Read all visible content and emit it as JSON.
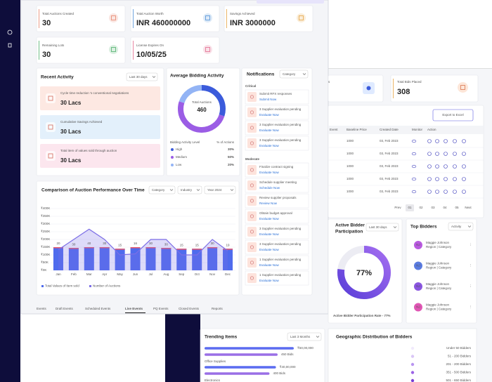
{
  "stat_cards": [
    {
      "label": "Total Auctions Created",
      "value": "30",
      "color": "#e8836b"
    },
    {
      "label": "Total Auction Worth",
      "value": "INR 460000000",
      "color": "#4e8fd6"
    },
    {
      "label": "Savings Achieved",
      "value": "INR 3000000",
      "color": "#e6a443"
    },
    {
      "label": "Remaining Lots",
      "value": "30",
      "color": "#4caf6a"
    },
    {
      "label": "License Expires On",
      "value": "10/05/25",
      "color": "#e36b8e"
    }
  ],
  "recent_activity": {
    "title": "Recent Activity",
    "filter": "Last 30 days",
    "items": [
      {
        "text": "Cycle time reduction ’s conventional negotiations",
        "value": "30 Lacs",
        "color": "#fde8e2"
      },
      {
        "text": "Cumulative Savings Achieved",
        "value": "30 Lacs",
        "color": "#e3f0fb"
      },
      {
        "text": "Total item of values sold through auction",
        "value": "30 Lacs",
        "color": "#fce6ee"
      }
    ]
  },
  "avg_bidding": {
    "title": "Average Bidding Activity",
    "center_label": "Total Auctions",
    "center_value": 460,
    "header": [
      "Bidding Activity Level",
      "% of Actions"
    ],
    "levels": [
      {
        "name": "High",
        "value": 30,
        "value_label": "30%",
        "color": "#3b5bdb"
      },
      {
        "name": "Medium",
        "value": 50,
        "value_label": "50%",
        "color": "#9b5de5"
      },
      {
        "name": "Low",
        "value": 20,
        "value_label": "20%",
        "color": "#93b4f5"
      }
    ]
  },
  "notifications": {
    "title": "Notifications",
    "filter": "Category",
    "groups": [
      {
        "name": "Critical",
        "items": [
          {
            "text": "Submit RFX responses",
            "action": "Submit Now"
          },
          {
            "text": "3 Supplier evaluation pending",
            "action": "Evaluate Now"
          },
          {
            "text": "3 Supplier evaluation pending",
            "action": "Evaluate Now"
          },
          {
            "text": "3 Supplier evaluation pending",
            "action": "Evaluate Now"
          }
        ]
      },
      {
        "name": "Moderate",
        "items": [
          {
            "text": "Finalize contract signing",
            "action": "Evaluate Now"
          },
          {
            "text": "Schedule supplier meeting",
            "action": "Schedule Now"
          },
          {
            "text": "Review supplier proposals",
            "action": "Review Now"
          },
          {
            "text": "Obtain budget approval",
            "action": "Evaluate Now"
          },
          {
            "text": "3 Supplier evaluation pending",
            "action": "Evaluate Now"
          },
          {
            "text": "3 Supplier evaluation pending",
            "action": "Evaluate Now"
          },
          {
            "text": "1 Supplier evaluation pending",
            "action": "Evaluate Now"
          },
          {
            "text": "1 Supplier evaluation pending",
            "action": "Evaluate Now"
          }
        ]
      }
    ]
  },
  "chart_data": {
    "type": "bar",
    "title": "Comparison of Auction Performance Over Time",
    "filters": [
      "Category",
      "Industry",
      "Year 2024"
    ],
    "categories": [
      "Jan",
      "Feb",
      "Mar",
      "Apr",
      "May",
      "Jun",
      "Jul",
      "Aug",
      "Sep",
      "Oct",
      "Nov",
      "Dec"
    ],
    "series": [
      {
        "name": "Total Values of Item sold",
        "color": "#4f6bed",
        "values": [
          150,
          145,
          150,
          150,
          140,
          150,
          150,
          145,
          140,
          140,
          150,
          140
        ]
      },
      {
        "name": "Number of Auctions",
        "type": "line",
        "axis": "y2",
        "color": "#7c6ee6",
        "values": [
          20,
          30,
          40,
          30,
          15,
          16,
          30,
          30,
          15,
          15,
          30,
          19
        ]
      }
    ],
    "ylim": [
      0,
      400
    ],
    "yticks": [
      {
        "value": 0,
        "label": "₹0K"
      },
      {
        "value": 50,
        "label": "₹50K"
      },
      {
        "value": 100,
        "label": "₹100K"
      },
      {
        "value": 150,
        "label": "₹150K"
      },
      {
        "value": 200,
        "label": "₹200K"
      },
      {
        "value": 250,
        "label": "₹250K"
      },
      {
        "value": 300,
        "label": "₹300K"
      },
      {
        "value": 350,
        "label": "₹350K"
      },
      {
        "value": 400,
        "label": "₹400K"
      }
    ],
    "y2lim": [
      0,
      60
    ]
  },
  "tabs": {
    "items": [
      "Events",
      "Draft Events",
      "Scheduled Events",
      "Live Events",
      "PQ Events",
      "Closed Events",
      "Reports"
    ],
    "active": 3
  },
  "back": {
    "partial_card_label": "s",
    "bids_card": {
      "label": "Total Bids Placed",
      "value": "308"
    },
    "export": "Export to Excel",
    "table": {
      "header": [
        "Event",
        "Baseline Price",
        "Created Date",
        "Monitor",
        "Action"
      ],
      "rows": [
        [
          "1000",
          "03, Feb 2023"
        ],
        [
          "1000",
          "03, Feb 2023"
        ],
        [
          "1000",
          "03, Feb 2023"
        ],
        [
          "1000",
          "03, Feb 2023"
        ],
        [
          "1000",
          "03, Feb 2023"
        ]
      ]
    },
    "pagination": [
      "Prev",
      "01",
      "02",
      "03",
      "04",
      "05",
      "Next"
    ],
    "active_page": 1,
    "participation": {
      "title": [
        "Active Bidder",
        "Participation"
      ],
      "filter": "Last 30 days",
      "value": 77,
      "value_label": "77%",
      "caption": "Active Bidder Participation Rate - 77%"
    },
    "top_bidders": {
      "title": "Top Bidders",
      "filter": "Activity",
      "items": [
        {
          "initials": "NJ",
          "name": "Maggie Johnson",
          "sub": "Region | Category",
          "color": "#b95ae0"
        },
        {
          "initials": "NJ",
          "name": "Maggie Johnson",
          "sub": "Region | Category",
          "color": "#5a7be0"
        },
        {
          "initials": "NJ",
          "name": "Maggie Johnson",
          "sub": "Region | Category",
          "color": "#8a56e0"
        },
        {
          "initials": "NJ",
          "name": "Maggie Johnson",
          "sub": "Region | Category",
          "color": "#e056b4"
        }
      ]
    },
    "trending": {
      "title": "Trending Items",
      "filter": "Last 3 Months",
      "items": [
        {
          "name": "Office Supplies",
          "value": 5000000,
          "value_label": "₹50,00,000",
          "bids": 450,
          "bids_label": "450 Bids"
        },
        {
          "name": "Electronics",
          "value": 4000000,
          "value_label": "₹40,00,000",
          "bids": 400,
          "bids_label": "400 Bids"
        }
      ],
      "value_color": "#5b6cf0",
      "bids_color": "#9a6fe6"
    },
    "geo": {
      "title": "Geographic Distribution of Bidders",
      "legend": [
        {
          "label": "Under 50 Bidders",
          "color": "#f1eafc"
        },
        {
          "label": "51 - 200 Bidders",
          "color": "#d9c6f6"
        },
        {
          "label": "201 - 200 Bidders",
          "color": "#b995f0"
        },
        {
          "label": "351 - 500 Bidders",
          "color": "#9c63e6"
        },
        {
          "label": "501 - 650 Bidders",
          "color": "#7a3fd6"
        }
      ]
    }
  }
}
